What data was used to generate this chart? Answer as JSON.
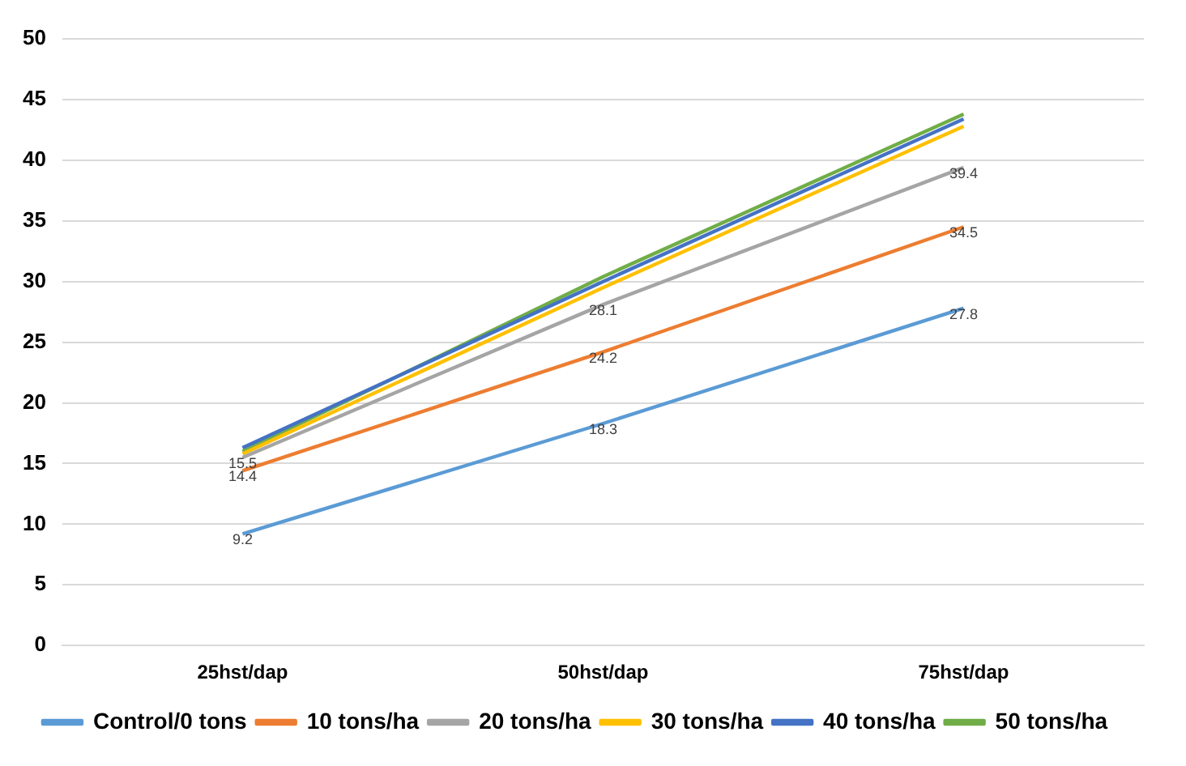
{
  "chart_data": {
    "type": "line",
    "categories": [
      "25hst/dap",
      "50hst/dap",
      "75hst/dap"
    ],
    "series": [
      {
        "name": "Control/0 tons",
        "color": "#5b9bd5",
        "values": [
          9.2,
          18.3,
          27.8
        ],
        "value_labels": [
          "9.2",
          "18.3",
          "27.8"
        ]
      },
      {
        "name": "10 tons/ha",
        "color": "#ed7d31",
        "values": [
          14.4,
          24.2,
          34.5
        ],
        "value_labels": [
          "14.4",
          "24.2",
          "34.5"
        ]
      },
      {
        "name": "20 tons/ha",
        "color": "#a5a5a5",
        "values": [
          15.5,
          28.1,
          39.4
        ],
        "value_labels": [
          "15.5",
          "28.1",
          "39.4"
        ]
      },
      {
        "name": "30 tons/ha",
        "color": "#ffc000",
        "values": [
          15.8,
          29.5,
          42.8
        ]
      },
      {
        "name": "40 tons/ha",
        "color": "#4472c4",
        "values": [
          16.3,
          30.0,
          43.4
        ]
      },
      {
        "name": "50 tons/ha",
        "color": "#70ad47",
        "values": [
          16.0,
          30.4,
          43.8
        ]
      }
    ],
    "ylim": [
      0,
      50
    ],
    "yticks": [
      0,
      5,
      10,
      15,
      20,
      25,
      30,
      35,
      40,
      45,
      50
    ],
    "grid": "y",
    "legend": "bottom",
    "marker": "none",
    "line_style": "solid"
  }
}
